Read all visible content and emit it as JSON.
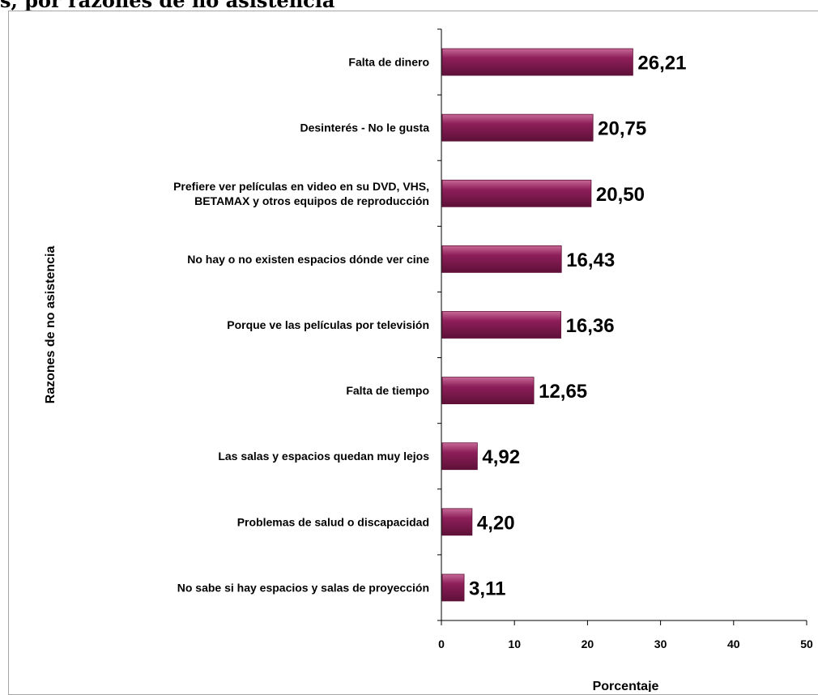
{
  "page": {
    "title": "s, por razones de no asistencia"
  },
  "chart_data": {
    "type": "bar",
    "orientation": "horizontal",
    "categories": [
      [
        "Falta de dinero"
      ],
      [
        "Desinterés - No le gusta"
      ],
      [
        "Prefiere ver películas en video en su DVD, VHS,",
        "BETAMAX y otros equipos de reproducción"
      ],
      [
        "No hay o no existen espacios dónde ver cine"
      ],
      [
        "Porque ve las películas por televisión"
      ],
      [
        "Falta de tiempo"
      ],
      [
        "Las salas y espacios quedan muy lejos"
      ],
      [
        "Problemas de salud o discapacidad"
      ],
      [
        "No sabe si hay espacios y salas de proyección"
      ]
    ],
    "values": [
      26.21,
      20.75,
      20.5,
      16.43,
      16.36,
      12.65,
      4.92,
      4.2,
      3.11
    ],
    "value_labels": [
      "26,21",
      "20,75",
      "20,50",
      "16,43",
      "16,36",
      "12,65",
      "4,92",
      "4,20",
      "3,11"
    ],
    "xlabel": "Porcentaje",
    "ylabel": "Razones de no asistencia",
    "xlim": [
      0,
      50
    ],
    "xticks": [
      0,
      10,
      20,
      30,
      40,
      50
    ],
    "grid": false,
    "legend": "none",
    "bar_color": "#8e1f5a",
    "bar_color_light": "#c86a98",
    "bar_color_dark": "#5e1038"
  }
}
